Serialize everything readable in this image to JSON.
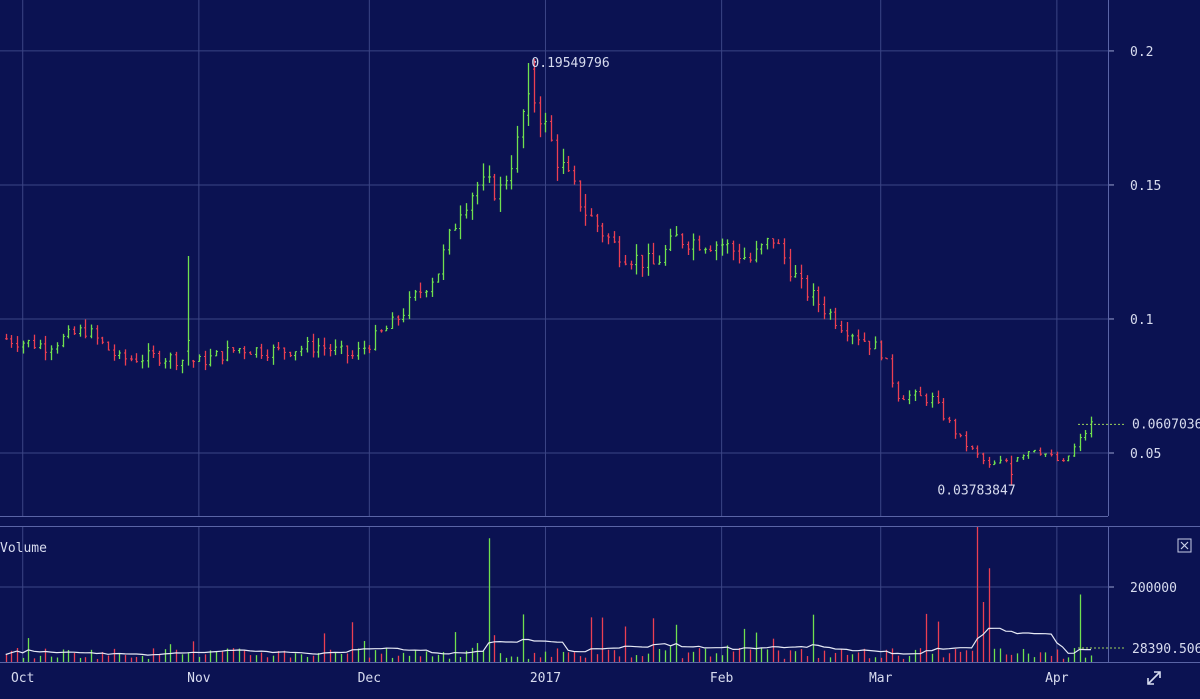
{
  "chart_data": {
    "type": "candlestick",
    "price_axis": {
      "ticks": [
        "0.2",
        "0.15",
        "0.1",
        "0.05"
      ],
      "tick_values": [
        0.2,
        0.15,
        0.1,
        0.05
      ],
      "ylim": [
        0.0265,
        0.219
      ]
    },
    "time_axis": {
      "labels": [
        "Oct",
        "Nov",
        "Dec",
        "2017",
        "Feb",
        "Mar",
        "Apr"
      ],
      "dates": [
        "2016-10-01",
        "2016-11-01",
        "2016-12-01",
        "2017-01-01",
        "2017-02-01",
        "2017-03-01",
        "2017-04-01"
      ],
      "xlim": [
        "2016-09-27",
        "2017-04-10"
      ]
    },
    "annotations": {
      "high_label": "0.19549796",
      "high_date": "2016-12-29",
      "low_label": "0.03783847",
      "low_date": "2017-03-24",
      "last_price_label": "0.0607036"
    },
    "volume_panel": {
      "title": "Volume",
      "ticks": [
        "200000"
      ],
      "tick_values": [
        200000
      ],
      "last_volume_label": "28390.506",
      "ylim": [
        0,
        360000
      ],
      "moving_average": true
    },
    "colors": {
      "background": "#0b1252",
      "up": "#6fe04f",
      "down": "#ea3f52",
      "grid": "#3b4585",
      "ma_line": "#e6e9f5",
      "last_price_line": "#9dd35a"
    }
  }
}
